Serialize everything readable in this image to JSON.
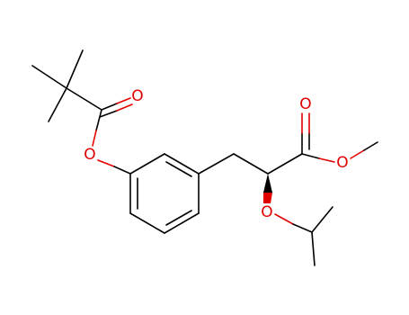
{
  "atoms": [
    {
      "label": "O"
    },
    {
      "label": "O"
    },
    {
      "label": "O"
    },
    {
      "label": "O"
    },
    {
      "label": "O"
    }
  ]
}
